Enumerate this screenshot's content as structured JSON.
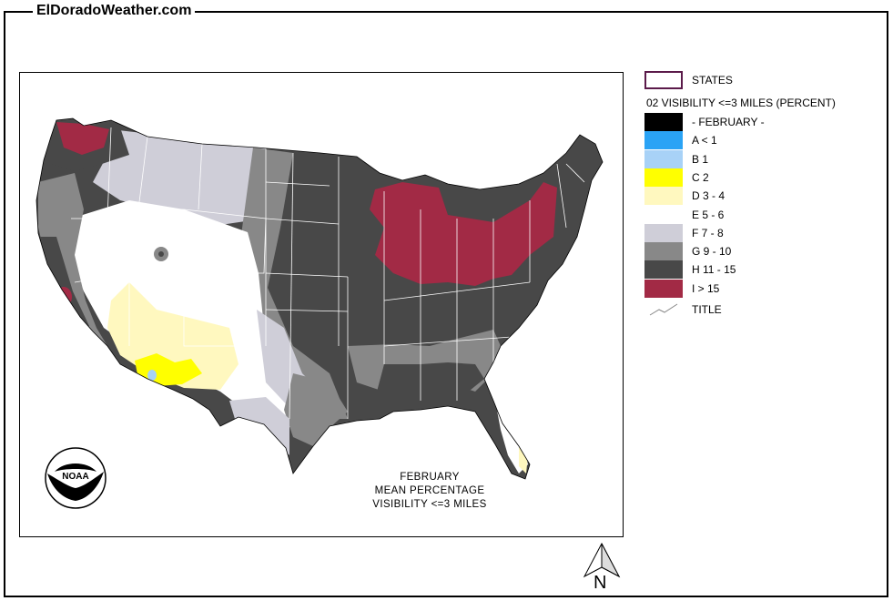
{
  "site": {
    "title": "ElDoradoWeather.com"
  },
  "map": {
    "caption_lines": [
      "FEBRUARY",
      "MEAN  PERCENTAGE",
      "VISIBILITY <=3 MILES"
    ],
    "logo_text": "NOAA",
    "north_label": "N"
  },
  "legend": {
    "states_label": "STATES",
    "heading": "02 VISIBILITY <=3 MILES (PERCENT)",
    "title_label": "TITLE",
    "items": [
      {
        "label": "- FEBRUARY -",
        "color": "#000000"
      },
      {
        "label": "A < 1",
        "color": "#2aa3f5"
      },
      {
        "label": "B 1",
        "color": "#a8d2f7"
      },
      {
        "label": "C 2",
        "color": "#ffff00"
      },
      {
        "label": "D 3 - 4",
        "color": "#fff8bf"
      },
      {
        "label": "E 5 - 6",
        "color": "#ffffff"
      },
      {
        "label": "F 7 - 8",
        "color": "#cfced8"
      },
      {
        "label": "G 9 - 10",
        "color": "#888888"
      },
      {
        "label": "H 11 - 15",
        "color": "#484848"
      },
      {
        "label": "I > 15",
        "color": "#a22a45"
      }
    ]
  },
  "colors": {
    "states_border": "#5b1a4a",
    "state_lines": "#ffffff"
  }
}
